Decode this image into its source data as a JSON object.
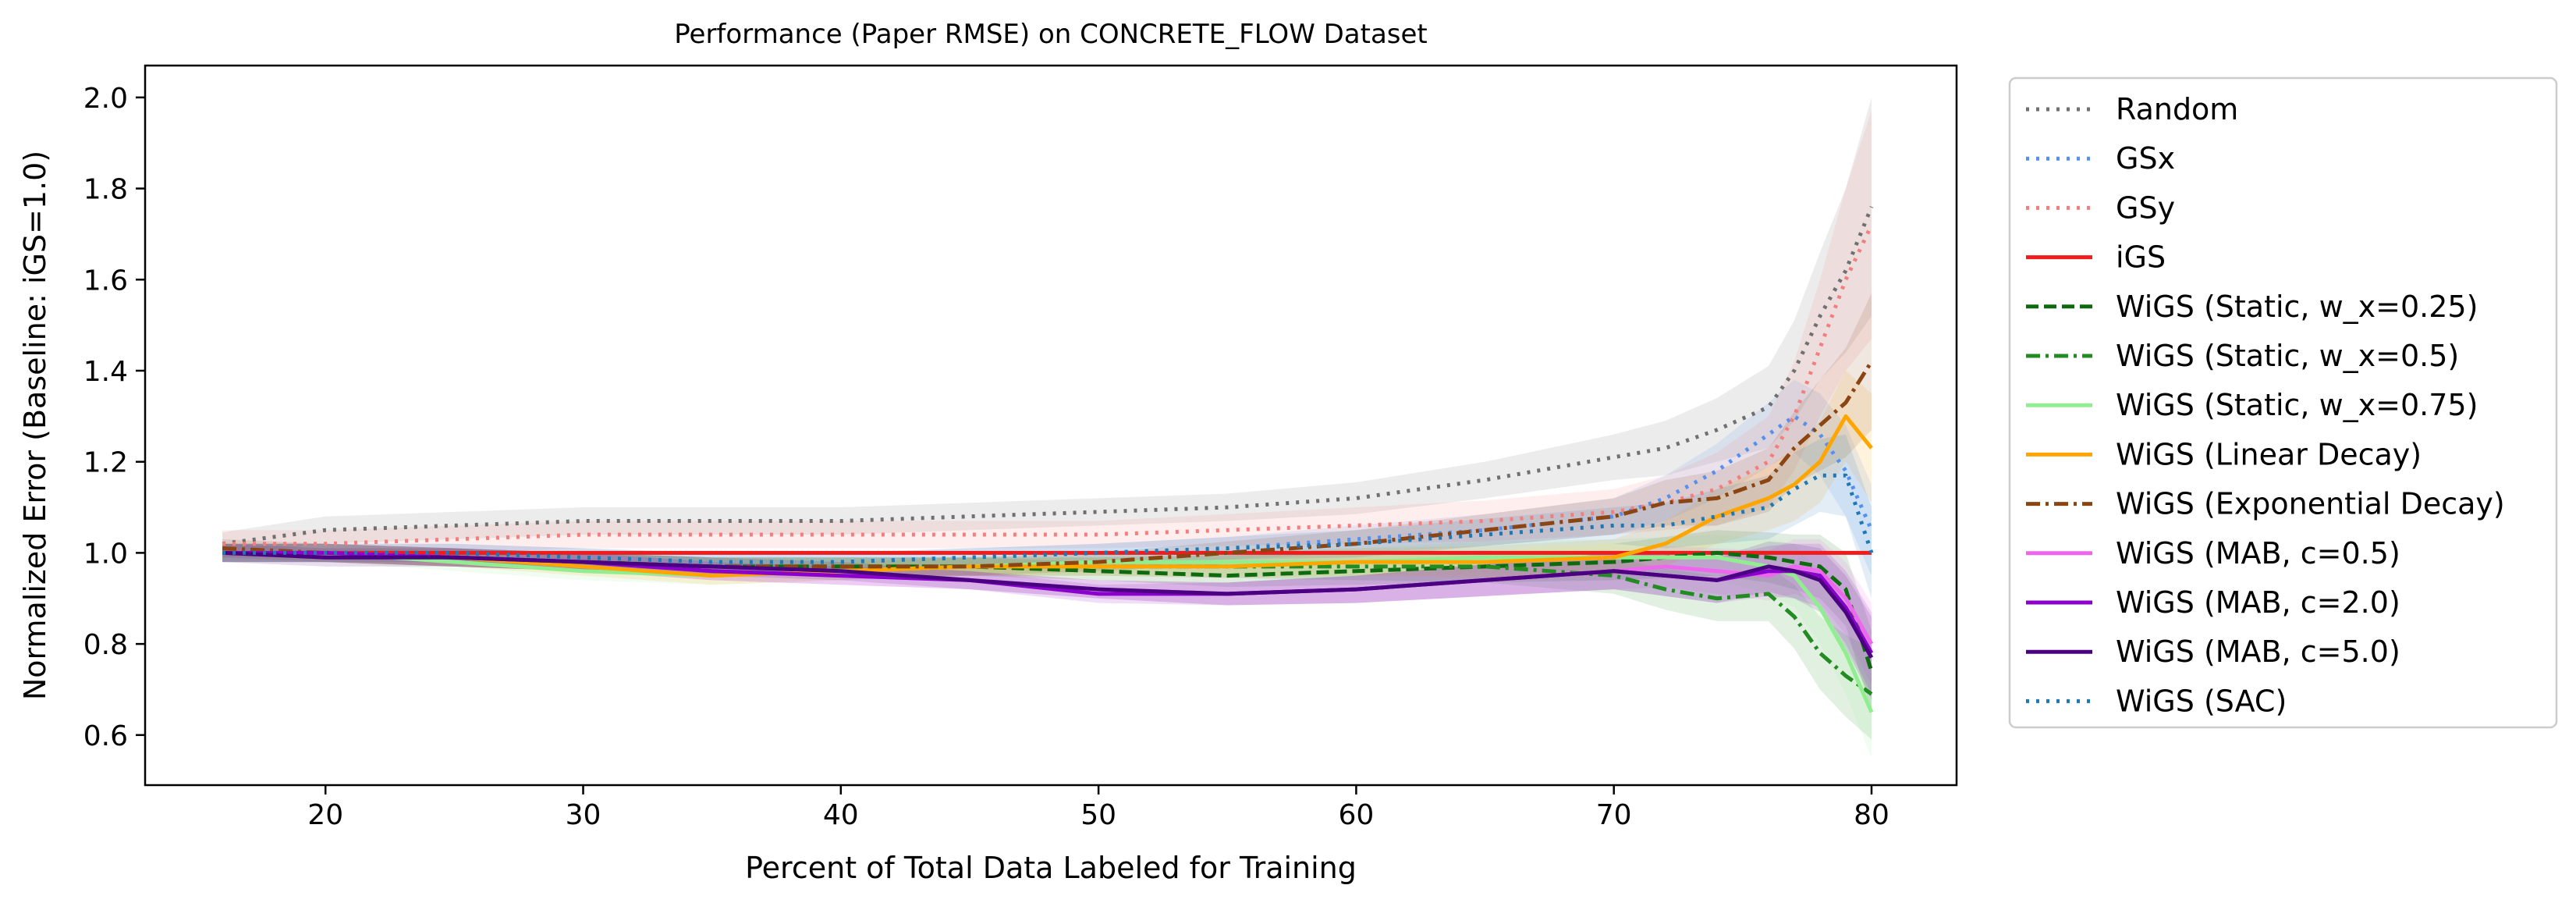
{
  "chart_data": {
    "type": "line",
    "title": "Performance (Paper RMSE) on CONCRETE_FLOW Dataset",
    "xlabel": "Percent of Total Data Labeled for Training",
    "ylabel": "Normalized Error (Baseline: iGS=1.0)",
    "xlim": [
      13,
      83.3
    ],
    "ylim": [
      0.49,
      2.07
    ],
    "xticks": [
      20,
      30,
      40,
      50,
      60,
      70,
      80
    ],
    "yticks": [
      0.6,
      0.8,
      1.0,
      1.2,
      1.4,
      1.6,
      1.8,
      2.0
    ],
    "grid": false,
    "legend_position": "outside-right",
    "x": [
      16,
      20,
      25,
      30,
      35,
      40,
      45,
      50,
      55,
      60,
      65,
      70,
      72,
      74,
      76,
      77,
      78,
      79,
      80
    ],
    "series": [
      {
        "name": "Random",
        "color": "#707070",
        "style": "dotted",
        "band": [
          0.025,
          0.03,
          0.03,
          0.03,
          0.03,
          0.03,
          0.03,
          0.03,
          0.03,
          0.035,
          0.04,
          0.05,
          0.06,
          0.07,
          0.09,
          0.11,
          0.14,
          0.18,
          0.24
        ],
        "values": [
          1.02,
          1.05,
          1.06,
          1.07,
          1.07,
          1.07,
          1.08,
          1.09,
          1.1,
          1.12,
          1.16,
          1.21,
          1.23,
          1.27,
          1.32,
          1.4,
          1.52,
          1.62,
          1.76
        ]
      },
      {
        "name": "GSx",
        "color": "#5590ee",
        "style": "dotted",
        "band": [
          0.02,
          0.02,
          0.02,
          0.02,
          0.02,
          0.02,
          0.02,
          0.02,
          0.025,
          0.03,
          0.035,
          0.04,
          0.05,
          0.06,
          0.07,
          0.08,
          0.09,
          0.1,
          0.1
        ],
        "values": [
          1.0,
          1.0,
          1.0,
          0.99,
          0.98,
          0.98,
          0.99,
          1.0,
          1.01,
          1.03,
          1.05,
          1.08,
          1.12,
          1.18,
          1.26,
          1.3,
          1.26,
          1.18,
          1.05
        ]
      },
      {
        "name": "GSy",
        "color": "#f47e7e",
        "style": "dotted",
        "band": [
          0.03,
          0.03,
          0.03,
          0.03,
          0.03,
          0.03,
          0.03,
          0.03,
          0.035,
          0.04,
          0.045,
          0.05,
          0.06,
          0.08,
          0.1,
          0.12,
          0.15,
          0.2,
          0.25
        ],
        "values": [
          1.02,
          1.02,
          1.03,
          1.04,
          1.04,
          1.04,
          1.04,
          1.04,
          1.05,
          1.06,
          1.07,
          1.09,
          1.11,
          1.14,
          1.2,
          1.3,
          1.45,
          1.6,
          1.72
        ]
      },
      {
        "name": "iGS",
        "color": "#ee1c1c",
        "style": "solid",
        "band": [
          0,
          0,
          0,
          0,
          0,
          0,
          0,
          0,
          0,
          0,
          0,
          0,
          0,
          0,
          0,
          0,
          0,
          0,
          0
        ],
        "values": [
          1.0,
          1.0,
          1.0,
          1.0,
          1.0,
          1.0,
          1.0,
          1.0,
          1.0,
          1.0,
          1.0,
          1.0,
          1.0,
          1.0,
          1.0,
          1.0,
          1.0,
          1.0,
          1.0
        ]
      },
      {
        "name": "WiGS (Static, w_x=0.25)",
        "color": "#0e6a0e",
        "style": "dashed",
        "band": [
          0.02,
          0.02,
          0.02,
          0.02,
          0.02,
          0.02,
          0.02,
          0.02,
          0.025,
          0.03,
          0.035,
          0.04,
          0.045,
          0.05,
          0.055,
          0.06,
          0.07,
          0.08,
          0.09
        ],
        "values": [
          1.0,
          1.0,
          0.99,
          0.98,
          0.97,
          0.97,
          0.97,
          0.96,
          0.95,
          0.96,
          0.97,
          0.98,
          0.99,
          1.0,
          0.99,
          0.98,
          0.97,
          0.92,
          0.74
        ]
      },
      {
        "name": "WiGS (Static, w_x=0.5)",
        "color": "#228b22",
        "style": "dashdot",
        "band": [
          0.02,
          0.02,
          0.02,
          0.02,
          0.02,
          0.02,
          0.02,
          0.02,
          0.025,
          0.03,
          0.035,
          0.04,
          0.045,
          0.05,
          0.06,
          0.07,
          0.08,
          0.09,
          0.1
        ],
        "values": [
          1.0,
          1.0,
          0.99,
          0.98,
          0.97,
          0.97,
          0.97,
          0.97,
          0.97,
          0.97,
          0.97,
          0.95,
          0.92,
          0.9,
          0.91,
          0.86,
          0.78,
          0.73,
          0.69
        ]
      },
      {
        "name": "WiGS (Static, w_x=0.75)",
        "color": "#90ee90",
        "style": "solid",
        "band": [
          0.02,
          0.02,
          0.02,
          0.02,
          0.02,
          0.02,
          0.02,
          0.02,
          0.025,
          0.03,
          0.035,
          0.04,
          0.045,
          0.05,
          0.06,
          0.07,
          0.08,
          0.09,
          0.1
        ],
        "values": [
          1.0,
          1.0,
          0.98,
          0.96,
          0.95,
          0.96,
          0.97,
          0.98,
          0.98,
          0.98,
          0.99,
          0.99,
          0.99,
          0.99,
          0.97,
          0.95,
          0.88,
          0.78,
          0.65
        ]
      },
      {
        "name": "WiGS (Linear Decay)",
        "color": "#ffa500",
        "style": "solid",
        "band": [
          0.02,
          0.02,
          0.02,
          0.02,
          0.02,
          0.02,
          0.02,
          0.02,
          0.025,
          0.03,
          0.035,
          0.04,
          0.05,
          0.06,
          0.07,
          0.08,
          0.09,
          0.1,
          0.12
        ],
        "values": [
          1.0,
          1.0,
          0.99,
          0.97,
          0.95,
          0.96,
          0.97,
          0.97,
          0.97,
          0.98,
          0.98,
          0.99,
          1.02,
          1.08,
          1.12,
          1.15,
          1.2,
          1.3,
          1.23
        ]
      },
      {
        "name": "WiGS (Exponential Decay)",
        "color": "#8b4513",
        "style": "dashdot",
        "band": [
          0.02,
          0.02,
          0.02,
          0.02,
          0.02,
          0.02,
          0.02,
          0.02,
          0.025,
          0.03,
          0.035,
          0.04,
          0.05,
          0.06,
          0.07,
          0.08,
          0.1,
          0.12,
          0.15
        ],
        "values": [
          1.01,
          1.0,
          0.99,
          0.98,
          0.97,
          0.97,
          0.97,
          0.98,
          1.0,
          1.02,
          1.05,
          1.08,
          1.11,
          1.12,
          1.16,
          1.23,
          1.28,
          1.33,
          1.42
        ]
      },
      {
        "name": "WiGS (MAB, c=0.5)",
        "color": "#ee66ee",
        "style": "solid",
        "band": [
          0.02,
          0.02,
          0.02,
          0.02,
          0.02,
          0.02,
          0.02,
          0.02,
          0.025,
          0.03,
          0.035,
          0.04,
          0.045,
          0.05,
          0.055,
          0.06,
          0.07,
          0.08,
          0.09
        ],
        "values": [
          1.0,
          1.0,
          0.99,
          0.98,
          0.96,
          0.95,
          0.94,
          0.92,
          0.91,
          0.92,
          0.94,
          0.96,
          0.97,
          0.96,
          0.95,
          0.97,
          0.96,
          0.9,
          0.8
        ]
      },
      {
        "name": "WiGS (MAB, c=2.0)",
        "color": "#8b00cc",
        "style": "solid",
        "band": [
          0.02,
          0.02,
          0.02,
          0.02,
          0.02,
          0.02,
          0.02,
          0.02,
          0.025,
          0.03,
          0.035,
          0.04,
          0.045,
          0.05,
          0.055,
          0.06,
          0.07,
          0.08,
          0.09
        ],
        "values": [
          1.0,
          1.0,
          0.99,
          0.98,
          0.96,
          0.95,
          0.94,
          0.91,
          0.91,
          0.92,
          0.94,
          0.96,
          0.95,
          0.94,
          0.96,
          0.96,
          0.95,
          0.88,
          0.78
        ]
      },
      {
        "name": "WiGS (MAB, c=5.0)",
        "color": "#4b0082",
        "style": "solid",
        "band": [
          0.02,
          0.02,
          0.02,
          0.02,
          0.02,
          0.02,
          0.02,
          0.02,
          0.025,
          0.03,
          0.035,
          0.04,
          0.045,
          0.05,
          0.055,
          0.06,
          0.07,
          0.08,
          0.09
        ],
        "values": [
          1.0,
          0.99,
          0.99,
          0.98,
          0.97,
          0.96,
          0.94,
          0.92,
          0.91,
          0.92,
          0.94,
          0.96,
          0.95,
          0.94,
          0.97,
          0.96,
          0.94,
          0.87,
          0.77
        ]
      },
      {
        "name": "WiGS (SAC)",
        "color": "#1f77b4",
        "style": "dotted",
        "band": [
          0.02,
          0.02,
          0.02,
          0.02,
          0.02,
          0.02,
          0.02,
          0.02,
          0.025,
          0.03,
          0.035,
          0.04,
          0.05,
          0.06,
          0.07,
          0.08,
          0.08,
          0.09,
          0.1
        ],
        "values": [
          1.0,
          1.0,
          1.0,
          0.99,
          0.98,
          0.98,
          0.99,
          1.0,
          1.01,
          1.02,
          1.04,
          1.06,
          1.06,
          1.08,
          1.1,
          1.14,
          1.17,
          1.17,
          1.0
        ]
      }
    ]
  }
}
